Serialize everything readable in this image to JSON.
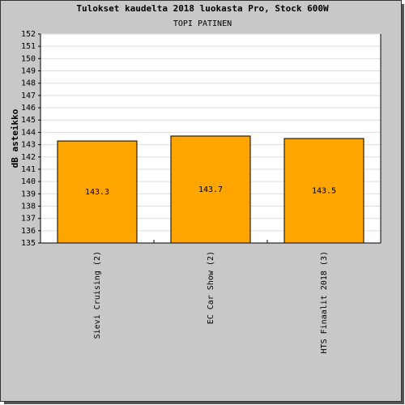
{
  "chart_data": {
    "type": "bar",
    "title": "Tulokset kaudelta 2018 luokasta Pro, Stock 600W",
    "subtitle": "TOPI PATINEN",
    "y_label": "dB asteikko",
    "categories": [
      "Sievi Cruising (2)",
      "EC Car Show (2)",
      "HTS Finaalit 2018 (3)"
    ],
    "values": [
      143.3,
      143.7,
      143.5
    ],
    "color": "#ffa500",
    "ylim": [
      135,
      152
    ],
    "yticks": [
      135,
      136,
      137,
      138,
      139,
      140,
      141,
      142,
      143,
      144,
      145,
      146,
      147,
      148,
      149,
      150,
      151,
      152
    ],
    "grid": true
  }
}
